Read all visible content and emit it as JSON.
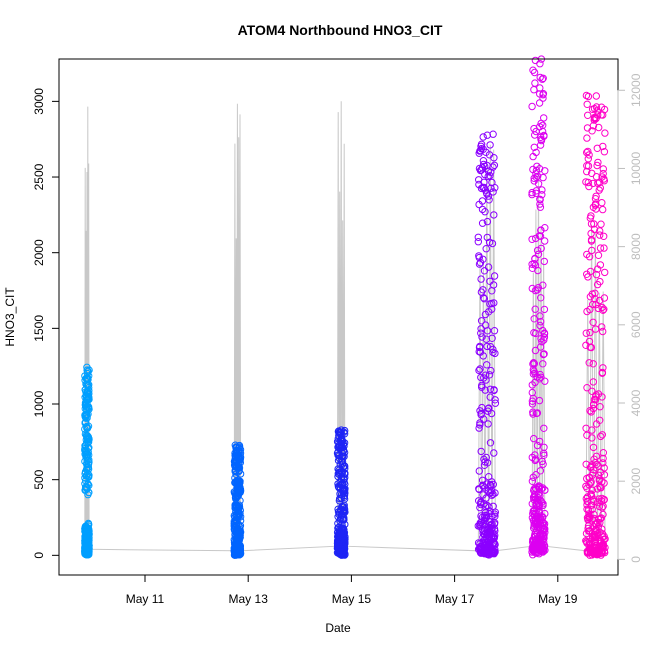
{
  "chart_data": {
    "type": "scatter",
    "title": "ATOM4 Northbound HNO3_CIT",
    "xlabel": "Date",
    "ylabel": "HNO3_CIT",
    "x_ticks": [
      {
        "value": "2018-05-11",
        "label": "May 11"
      },
      {
        "value": "2018-05-13",
        "label": "May 13"
      },
      {
        "value": "2018-05-15",
        "label": "May 15"
      },
      {
        "value": "2018-05-17",
        "label": "May 17"
      },
      {
        "value": "2018-05-19",
        "label": "May 19"
      }
    ],
    "xlim": [
      "2018-05-09 08:00",
      "2018-05-20 04:00"
    ],
    "ylim": [
      -130,
      3280
    ],
    "y_ticks": [
      0,
      500,
      1000,
      1500,
      2000,
      2500,
      3000
    ],
    "y2lim": [
      -400,
      12800
    ],
    "y2_ticks": [
      0,
      2000,
      4000,
      6000,
      8000,
      10000,
      12000
    ],
    "y2_color": "#bdbdbd",
    "line_color": "#c8c8c8",
    "grid": false,
    "legend": "none",
    "flights": [
      {
        "start": "2018-05-09 20:00",
        "end": "2018-05-09 22:00",
        "color": "#009fff",
        "base": 40,
        "low_max": 220,
        "high_min": 400,
        "high_max": 1250,
        "alt_max": 2970
      },
      {
        "start": "2018-05-12 17:30",
        "end": "2018-05-12 20:30",
        "color": "#0065ff",
        "base": 30,
        "low_max": 250,
        "high_min": 250,
        "high_max": 730,
        "alt_max": 3130
      },
      {
        "start": "2018-05-14 17:30",
        "end": "2018-05-14 21:00",
        "color": "#1e24f5",
        "base": 60,
        "low_max": 200,
        "high_min": 200,
        "high_max": 830,
        "alt_max": 3270
      },
      {
        "start": "2018-05-17 11:00",
        "end": "2018-05-17 19:00",
        "color": "#8b00ff",
        "base": 30,
        "low_max": 500,
        "high_min": 500,
        "high_max": 2790,
        "alt_max": 2860
      },
      {
        "start": "2018-05-18 12:00",
        "end": "2018-05-18 18:00",
        "color": "#dc00f0",
        "base": 60,
        "low_max": 500,
        "high_min": 500,
        "high_max": 3280,
        "alt_max": 2900
      },
      {
        "start": "2018-05-19 13:00",
        "end": "2018-05-19 22:00",
        "color": "#ff00c8",
        "base": 30,
        "low_max": 700,
        "high_min": 700,
        "high_max": 3040,
        "alt_max": 2260
      }
    ]
  }
}
